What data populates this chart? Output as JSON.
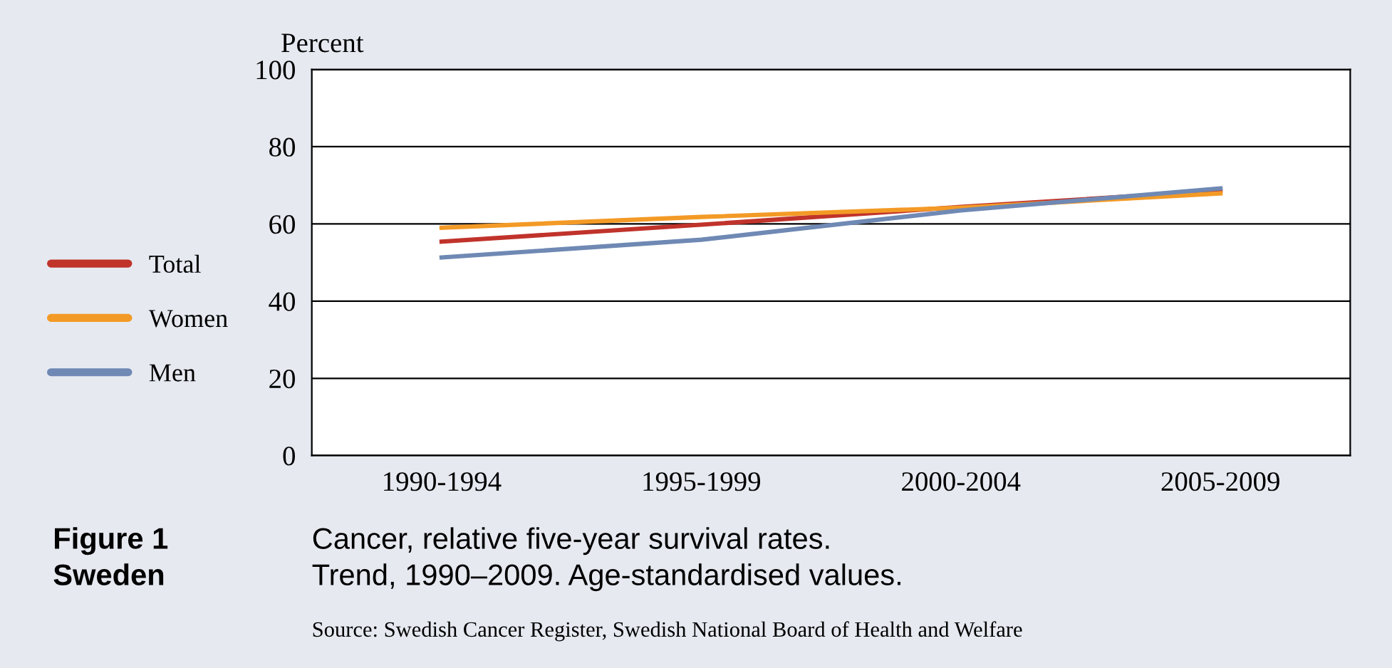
{
  "chart_data": {
    "type": "line",
    "title": "Figure 1\nSweden",
    "subtitle": "Cancer, relative five-year survival rates.\nTrend, 1990–2009. Age-standardised values.",
    "ylabel": "Percent",
    "categories": [
      "1990-1994",
      "1995-1999",
      "2000-2004",
      "2005-2009"
    ],
    "series": [
      {
        "name": "Total",
        "color": "#c0332b",
        "values": [
          55.4,
          59.8,
          64.4,
          68.6
        ]
      },
      {
        "name": "Women",
        "color": "#f39a26",
        "values": [
          59.0,
          61.8,
          64.2,
          67.9
        ]
      },
      {
        "name": "Men",
        "color": "#6f89b4",
        "values": [
          51.3,
          55.9,
          63.5,
          69.2
        ]
      }
    ],
    "ylim": [
      0,
      100
    ],
    "yticks": [
      0,
      20,
      40,
      60,
      80,
      100
    ],
    "grid": "y",
    "legend": "left",
    "marker": "none",
    "line_style": "solid",
    "annotations": [
      "Source: Swedish Cancer Register, Swedish National Board of Health and Welfare"
    ]
  }
}
